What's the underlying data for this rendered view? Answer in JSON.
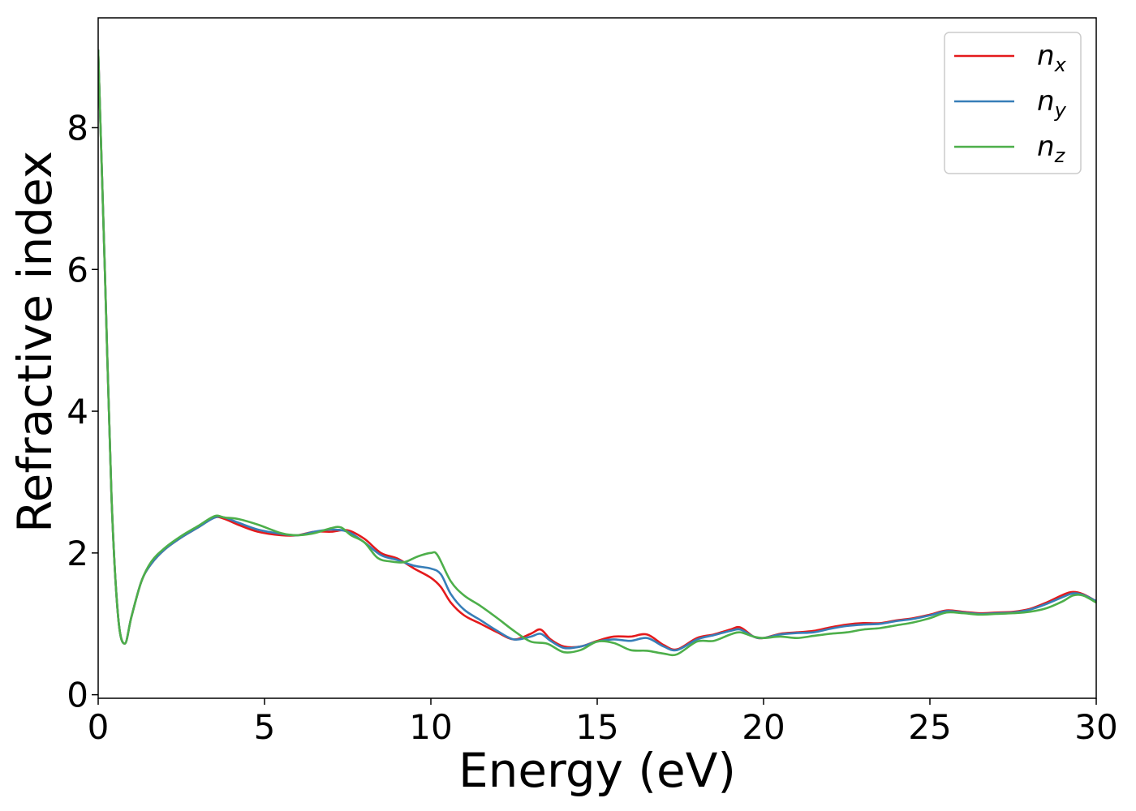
{
  "chart_data": {
    "type": "line",
    "xlabel": "Energy (eV)",
    "ylabel": "Refractive index",
    "xlim": [
      0,
      30
    ],
    "ylim": [
      -0.05,
      9.55
    ],
    "xticks": [
      0,
      5,
      10,
      15,
      20,
      25,
      30
    ],
    "yticks": [
      0,
      2,
      4,
      6,
      8
    ],
    "grid": false,
    "legend_position": "top-right",
    "series": [
      {
        "name": "n",
        "subscript": "x",
        "color": "#e41a1c",
        "x": [
          0,
          0.2,
          0.4,
          0.6,
          0.8,
          1.0,
          1.3,
          1.6,
          2.0,
          2.5,
          3.0,
          3.5,
          3.8,
          4.2,
          4.8,
          5.5,
          6.0,
          6.5,
          7.0,
          7.5,
          8.0,
          8.5,
          9.0,
          9.5,
          10.0,
          10.3,
          10.6,
          11.0,
          11.5,
          12.0,
          12.5,
          13.0,
          13.3,
          13.6,
          14.0,
          14.5,
          15.0,
          15.5,
          16.0,
          16.5,
          17.0,
          17.4,
          18.0,
          18.5,
          19.0,
          19.3,
          19.7,
          20.0,
          20.5,
          21.0,
          21.5,
          22.0,
          22.5,
          23.0,
          23.5,
          24.0,
          24.5,
          25.0,
          25.5,
          26.0,
          26.5,
          27.0,
          27.5,
          28.0,
          28.5,
          29.0,
          29.3,
          29.6,
          30.0
        ],
        "y": [
          9.1,
          6.0,
          2.8,
          1.1,
          0.72,
          1.1,
          1.6,
          1.85,
          2.05,
          2.22,
          2.36,
          2.5,
          2.48,
          2.4,
          2.3,
          2.25,
          2.25,
          2.3,
          2.3,
          2.32,
          2.2,
          2.0,
          1.92,
          1.78,
          1.65,
          1.52,
          1.3,
          1.12,
          1.0,
          0.88,
          0.78,
          0.86,
          0.92,
          0.78,
          0.68,
          0.68,
          0.76,
          0.82,
          0.82,
          0.85,
          0.7,
          0.64,
          0.8,
          0.85,
          0.92,
          0.95,
          0.82,
          0.8,
          0.86,
          0.88,
          0.9,
          0.95,
          0.99,
          1.01,
          1.01,
          1.05,
          1.08,
          1.13,
          1.19,
          1.17,
          1.15,
          1.16,
          1.17,
          1.21,
          1.3,
          1.41,
          1.45,
          1.42,
          1.32
        ]
      },
      {
        "name": "n",
        "subscript": "y",
        "color": "#377eb8",
        "x": [
          0,
          0.2,
          0.4,
          0.6,
          0.8,
          1.0,
          1.3,
          1.6,
          2.0,
          2.5,
          3.0,
          3.5,
          3.8,
          4.2,
          4.8,
          5.5,
          6.0,
          6.5,
          7.0,
          7.5,
          8.0,
          8.5,
          9.0,
          9.5,
          10.0,
          10.3,
          10.6,
          11.0,
          11.5,
          12.0,
          12.5,
          13.0,
          13.3,
          13.6,
          14.0,
          14.5,
          15.0,
          15.5,
          16.0,
          16.5,
          17.0,
          17.4,
          18.0,
          18.5,
          19.0,
          19.3,
          19.7,
          20.0,
          20.5,
          21.0,
          21.5,
          22.0,
          22.5,
          23.0,
          23.5,
          24.0,
          24.5,
          25.0,
          25.5,
          26.0,
          26.5,
          27.0,
          27.5,
          28.0,
          28.5,
          29.0,
          29.3,
          29.6,
          30.0
        ],
        "y": [
          9.1,
          6.0,
          2.8,
          1.1,
          0.72,
          1.1,
          1.6,
          1.85,
          2.05,
          2.22,
          2.36,
          2.5,
          2.5,
          2.43,
          2.33,
          2.27,
          2.25,
          2.3,
          2.33,
          2.3,
          2.15,
          1.97,
          1.9,
          1.82,
          1.78,
          1.7,
          1.42,
          1.2,
          1.05,
          0.9,
          0.78,
          0.82,
          0.86,
          0.76,
          0.66,
          0.68,
          0.75,
          0.78,
          0.76,
          0.8,
          0.68,
          0.63,
          0.78,
          0.84,
          0.9,
          0.92,
          0.82,
          0.8,
          0.85,
          0.87,
          0.88,
          0.93,
          0.97,
          0.99,
          1.0,
          1.04,
          1.07,
          1.12,
          1.18,
          1.16,
          1.14,
          1.15,
          1.16,
          1.2,
          1.28,
          1.38,
          1.43,
          1.41,
          1.32
        ]
      },
      {
        "name": "n",
        "subscript": "z",
        "color": "#4daf4a",
        "x": [
          0,
          0.2,
          0.4,
          0.6,
          0.8,
          1.0,
          1.3,
          1.6,
          2.0,
          2.5,
          3.0,
          3.5,
          3.8,
          4.2,
          4.8,
          5.5,
          6.0,
          6.5,
          7.0,
          7.3,
          7.6,
          8.0,
          8.4,
          8.8,
          9.2,
          9.6,
          10.0,
          10.2,
          10.6,
          11.0,
          11.5,
          12.0,
          12.5,
          13.0,
          13.5,
          14.0,
          14.5,
          15.0,
          15.5,
          16.0,
          16.5,
          17.0,
          17.4,
          18.0,
          18.5,
          19.0,
          19.3,
          19.7,
          20.0,
          20.5,
          21.0,
          21.5,
          22.0,
          22.5,
          23.0,
          23.5,
          24.0,
          24.5,
          25.0,
          25.5,
          26.0,
          26.5,
          27.0,
          27.5,
          28.0,
          28.5,
          29.0,
          29.3,
          29.6,
          30.0
        ],
        "y": [
          9.1,
          6.0,
          2.8,
          1.1,
          0.72,
          1.1,
          1.6,
          1.88,
          2.07,
          2.24,
          2.38,
          2.52,
          2.5,
          2.48,
          2.4,
          2.28,
          2.25,
          2.28,
          2.35,
          2.36,
          2.25,
          2.15,
          1.93,
          1.88,
          1.87,
          1.95,
          2.0,
          1.97,
          1.6,
          1.4,
          1.25,
          1.08,
          0.9,
          0.75,
          0.72,
          0.6,
          0.63,
          0.75,
          0.73,
          0.63,
          0.62,
          0.58,
          0.57,
          0.75,
          0.76,
          0.85,
          0.88,
          0.82,
          0.8,
          0.82,
          0.8,
          0.83,
          0.86,
          0.88,
          0.92,
          0.94,
          0.98,
          1.02,
          1.08,
          1.16,
          1.15,
          1.13,
          1.14,
          1.15,
          1.17,
          1.22,
          1.32,
          1.4,
          1.4,
          1.3
        ]
      }
    ]
  }
}
